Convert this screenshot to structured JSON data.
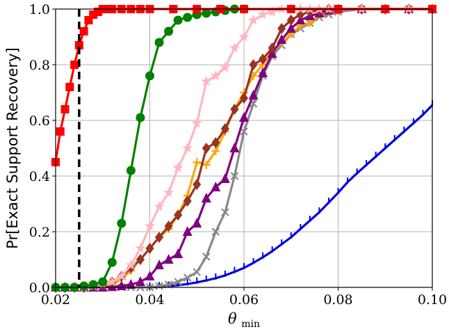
{
  "chart_data": {
    "type": "line",
    "title": "",
    "xlabel": "θ",
    "xlabel_subscript": "min",
    "ylabel": "Pr[Exact Support Recovery]",
    "xlim": [
      0.02,
      0.1
    ],
    "ylim": [
      0.0,
      1.0
    ],
    "xticks": [
      0.02,
      0.04,
      0.06,
      0.08,
      0.1
    ],
    "xtick_labels": [
      "0.02",
      "0.04",
      "0.06",
      "0.08",
      "0.10"
    ],
    "yticks": [
      0.0,
      0.2,
      0.4,
      0.6,
      0.8,
      1.0
    ],
    "ytick_labels": [
      "0.0",
      "0.2",
      "0.4",
      "0.6",
      "0.8",
      "1.0"
    ],
    "grid": true,
    "legend": "none",
    "vline": {
      "x": 0.025,
      "style": "dashed",
      "color": "#000000"
    },
    "series": [
      {
        "color": "#0000dd",
        "marker": "tick",
        "x": [
          0.04,
          0.042,
          0.044,
          0.046,
          0.048,
          0.05,
          0.052,
          0.054,
          0.056,
          0.058,
          0.06,
          0.062,
          0.064,
          0.066,
          0.068,
          0.07,
          0.072,
          0.074,
          0.076,
          0.078,
          0.08,
          0.082,
          0.084,
          0.086,
          0.088,
          0.09,
          0.092,
          0.094,
          0.096,
          0.098,
          0.1
        ],
        "y": [
          0.0,
          0.002,
          0.004,
          0.008,
          0.012,
          0.018,
          0.025,
          0.033,
          0.043,
          0.056,
          0.07,
          0.088,
          0.108,
          0.13,
          0.155,
          0.18,
          0.21,
          0.24,
          0.27,
          0.305,
          0.34,
          0.378,
          0.41,
          0.44,
          0.47,
          0.5,
          0.53,
          0.56,
          0.59,
          0.62,
          0.655
        ]
      },
      {
        "color": "#888888",
        "marker": "x",
        "x": [
          0.02,
          0.022,
          0.024,
          0.026,
          0.028,
          0.03,
          0.032,
          0.034,
          0.036,
          0.038,
          0.04,
          0.042,
          0.044,
          0.046,
          0.048,
          0.05,
          0.052,
          0.054,
          0.056,
          0.058,
          0.06,
          0.062,
          0.064,
          0.066,
          0.068,
          0.07,
          0.072,
          0.074,
          0.076,
          0.078,
          0.08,
          0.085,
          0.09,
          0.095,
          0.1
        ],
        "y": [
          0,
          0,
          0,
          0,
          0,
          0,
          0,
          0,
          0,
          0,
          0.0,
          0.005,
          0.01,
          0.02,
          0.035,
          0.055,
          0.11,
          0.2,
          0.27,
          0.4,
          0.56,
          0.66,
          0.76,
          0.83,
          0.87,
          0.91,
          0.93,
          0.95,
          0.97,
          0.98,
          0.99,
          1.0,
          1.0,
          1.0,
          1.0
        ]
      },
      {
        "color": "#ffa500",
        "marker": "plus",
        "x": [
          0.02,
          0.022,
          0.024,
          0.026,
          0.028,
          0.03,
          0.032,
          0.034,
          0.036,
          0.038,
          0.04,
          0.042,
          0.044,
          0.046,
          0.048,
          0.05,
          0.052,
          0.054,
          0.056,
          0.058,
          0.06,
          0.062,
          0.064,
          0.066,
          0.068,
          0.07,
          0.072,
          0.074,
          0.076,
          0.078,
          0.08,
          0.085,
          0.09,
          0.095,
          0.1
        ],
        "y": [
          0,
          0,
          0,
          0,
          0,
          0.005,
          0.01,
          0.03,
          0.06,
          0.1,
          0.14,
          0.18,
          0.21,
          0.26,
          0.33,
          0.45,
          0.44,
          0.49,
          0.56,
          0.64,
          0.7,
          0.76,
          0.8,
          0.85,
          0.88,
          0.91,
          0.94,
          0.95,
          0.98,
          0.99,
          1.0,
          1.0,
          1.0,
          1.0,
          1.0
        ]
      },
      {
        "color": "#800080",
        "marker": "triangle",
        "x": [
          0.02,
          0.022,
          0.024,
          0.026,
          0.028,
          0.03,
          0.032,
          0.034,
          0.036,
          0.038,
          0.04,
          0.042,
          0.044,
          0.046,
          0.048,
          0.05,
          0.052,
          0.054,
          0.056,
          0.058,
          0.06,
          0.062,
          0.064,
          0.066,
          0.068,
          0.07,
          0.072,
          0.074,
          0.076,
          0.078,
          0.08,
          0.085,
          0.09,
          0.095,
          0.1
        ],
        "y": [
          0,
          0,
          0,
          0,
          0,
          0,
          0.002,
          0.005,
          0.01,
          0.02,
          0.04,
          0.08,
          0.1,
          0.12,
          0.2,
          0.23,
          0.32,
          0.36,
          0.39,
          0.5,
          0.61,
          0.69,
          0.77,
          0.84,
          0.89,
          0.93,
          0.96,
          0.975,
          0.985,
          0.995,
          1.0,
          1.0,
          1.0,
          1.0,
          1.0
        ]
      },
      {
        "color": "#993322",
        "marker": "diamond",
        "x": [
          0.02,
          0.022,
          0.024,
          0.026,
          0.028,
          0.03,
          0.032,
          0.034,
          0.036,
          0.038,
          0.04,
          0.042,
          0.044,
          0.046,
          0.048,
          0.05,
          0.052,
          0.054,
          0.056,
          0.058,
          0.06,
          0.062,
          0.064,
          0.066,
          0.068,
          0.07,
          0.072,
          0.074,
          0.076,
          0.078,
          0.08,
          0.085,
          0.09,
          0.095,
          0.1
        ],
        "y": [
          0,
          0,
          0,
          0,
          0.005,
          0.01,
          0.02,
          0.04,
          0.07,
          0.1,
          0.14,
          0.18,
          0.22,
          0.26,
          0.31,
          0.37,
          0.5,
          0.52,
          0.57,
          0.64,
          0.68,
          0.8,
          0.82,
          0.86,
          0.93,
          0.96,
          0.98,
          0.99,
          0.995,
          1.0,
          1.0,
          1.0,
          1.0,
          1.0,
          1.0
        ]
      },
      {
        "color": "#ffb6c1",
        "marker": "star",
        "x": [
          0.02,
          0.022,
          0.024,
          0.026,
          0.028,
          0.03,
          0.032,
          0.034,
          0.036,
          0.038,
          0.04,
          0.042,
          0.044,
          0.046,
          0.048,
          0.05,
          0.052,
          0.054,
          0.056,
          0.058,
          0.06,
          0.062,
          0.064,
          0.066,
          0.068,
          0.07,
          0.072,
          0.074,
          0.076,
          0.078,
          0.08,
          0.085,
          0.09,
          0.095,
          0.1
        ],
        "y": [
          0,
          0,
          0,
          0,
          0.005,
          0.01,
          0.02,
          0.04,
          0.08,
          0.14,
          0.22,
          0.29,
          0.34,
          0.43,
          0.5,
          0.59,
          0.74,
          0.76,
          0.79,
          0.86,
          0.9,
          0.96,
          0.98,
          0.99,
          1.0,
          1.0,
          1.0,
          1.0,
          1.0,
          1.0,
          1.0,
          1.0,
          1.0,
          1.0,
          1.0
        ]
      },
      {
        "color": "#008000",
        "marker": "circle",
        "x": [
          0.02,
          0.022,
          0.024,
          0.026,
          0.028,
          0.03,
          0.032,
          0.034,
          0.036,
          0.038,
          0.04,
          0.042,
          0.044,
          0.046,
          0.048,
          0.05,
          0.052,
          0.054,
          0.056,
          0.058,
          0.06
        ],
        "y": [
          0.0,
          0.0,
          0.0,
          0.005,
          0.01,
          0.02,
          0.09,
          0.23,
          0.42,
          0.61,
          0.76,
          0.88,
          0.92,
          0.96,
          0.97,
          0.98,
          0.985,
          0.99,
          0.995,
          1.0,
          1.0
        ]
      },
      {
        "color": "#ff0000",
        "marker": "square",
        "x": [
          0.02,
          0.021,
          0.022,
          0.023,
          0.024,
          0.025,
          0.026,
          0.027,
          0.028,
          0.029,
          0.03,
          0.031,
          0.032,
          0.034,
          0.036,
          0.038,
          0.04,
          0.045,
          0.05,
          0.055,
          0.06,
          0.07,
          0.08,
          0.09,
          0.1
        ],
        "y": [
          0.45,
          0.56,
          0.64,
          0.72,
          0.8,
          0.87,
          0.92,
          0.96,
          0.98,
          0.99,
          1.0,
          1.0,
          1.0,
          1.0,
          1.0,
          1.0,
          1.0,
          1.0,
          1.0,
          1.0,
          1.0,
          1.0,
          1.0,
          1.0,
          1.0
        ]
      }
    ]
  }
}
